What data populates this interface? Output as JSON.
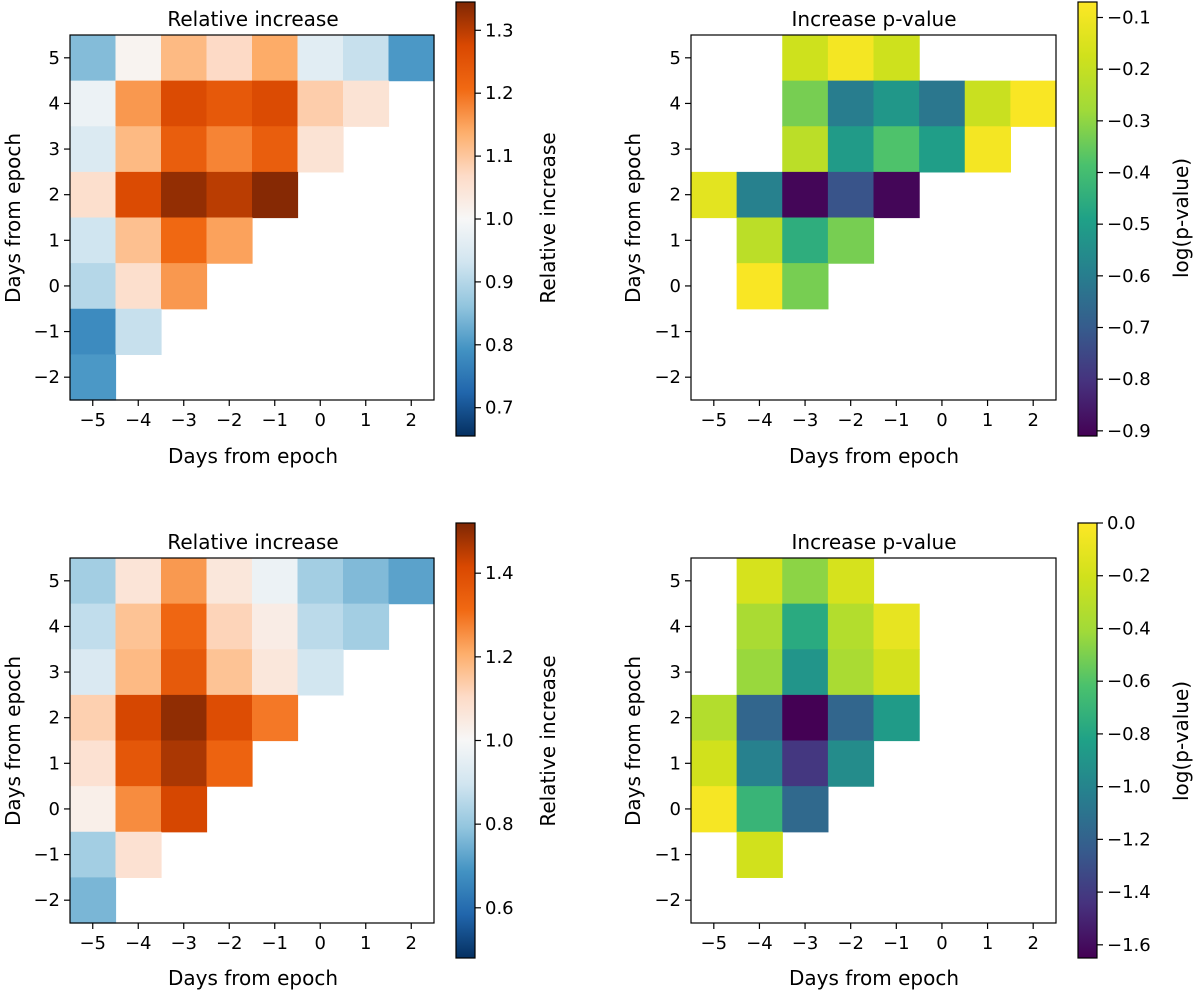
{
  "chart_data": [
    {
      "type": "heatmap",
      "title": "Relative increase",
      "xlabel": "Days from epoch",
      "ylabel": "Days from epoch",
      "x_ticks": [
        "−5",
        "−4",
        "−3",
        "−2",
        "−1",
        "0",
        "1",
        "2"
      ],
      "y_ticks": [
        "−2",
        "−1",
        "0",
        "1",
        "2",
        "3",
        "4",
        "5"
      ],
      "colormap": "RdBu_r",
      "colorbar": {
        "label": "Relative increase",
        "range": [
          0.655,
          1.345
        ],
        "ticks": [
          "0.7",
          "0.8",
          "0.9",
          "1.0",
          "1.1",
          "1.2",
          "1.3"
        ]
      },
      "rows": [
        {
          "y": "5",
          "values": [
            0.85,
            1.01,
            1.12,
            1.07,
            1.14,
            0.96,
            0.92,
            0.8
          ]
        },
        {
          "y": "4",
          "values": [
            0.98,
            1.16,
            1.27,
            1.24,
            1.27,
            1.09,
            1.05,
            null
          ]
        },
        {
          "y": "3",
          "values": [
            0.95,
            1.12,
            1.23,
            1.18,
            1.23,
            1.05,
            null,
            null
          ]
        },
        {
          "y": "2",
          "values": [
            1.06,
            1.27,
            1.33,
            1.3,
            1.34,
            null,
            null,
            null
          ]
        },
        {
          "y": "1",
          "values": [
            0.93,
            1.11,
            1.21,
            1.15,
            null,
            null,
            null,
            null
          ]
        },
        {
          "y": "0",
          "values": [
            0.9,
            1.06,
            1.16,
            null,
            null,
            null,
            null,
            null
          ]
        },
        {
          "y": "−1",
          "values": [
            0.78,
            0.92,
            null,
            null,
            null,
            null,
            null,
            null
          ]
        },
        {
          "y": "−2",
          "values": [
            0.8,
            null,
            null,
            null,
            null,
            null,
            null,
            null
          ]
        }
      ]
    },
    {
      "type": "heatmap",
      "title": "Increase p-value",
      "xlabel": "Days from epoch",
      "ylabel": "Days from epoch",
      "x_ticks": [
        "−5",
        "−4",
        "−3",
        "−2",
        "−1",
        "0",
        "1",
        "2"
      ],
      "y_ticks": [
        "−2",
        "−1",
        "0",
        "1",
        "2",
        "3",
        "4",
        "5"
      ],
      "colormap": "viridis",
      "colorbar": {
        "label": "log(p-value)",
        "range": [
          -0.91,
          -0.07
        ],
        "ticks": [
          "−0.9",
          "−0.8",
          "−0.7",
          "−0.6",
          "−0.5",
          "−0.4",
          "−0.3",
          "−0.2",
          "−0.1"
        ]
      },
      "rows": [
        {
          "y": "5",
          "values": [
            null,
            null,
            -0.18,
            -0.09,
            -0.18,
            null,
            null,
            null
          ]
        },
        {
          "y": "4",
          "values": [
            null,
            null,
            -0.33,
            -0.6,
            -0.52,
            -0.62,
            -0.19,
            -0.08
          ]
        },
        {
          "y": "3",
          "values": [
            null,
            null,
            -0.22,
            -0.51,
            -0.38,
            -0.5,
            -0.09,
            null
          ]
        },
        {
          "y": "2",
          "values": [
            -0.13,
            -0.59,
            -0.9,
            -0.72,
            -0.9,
            null,
            null,
            null
          ]
        },
        {
          "y": "1",
          "values": [
            null,
            -0.22,
            -0.45,
            -0.33,
            null,
            null,
            null,
            null
          ]
        },
        {
          "y": "0",
          "values": [
            null,
            -0.08,
            -0.33,
            null,
            null,
            null,
            null,
            null
          ]
        },
        {
          "y": "−1",
          "values": [
            null,
            null,
            null,
            null,
            null,
            null,
            null,
            null
          ]
        },
        {
          "y": "−2",
          "values": [
            null,
            null,
            null,
            null,
            null,
            null,
            null,
            null
          ]
        }
      ]
    },
    {
      "type": "heatmap",
      "title": "Relative increase",
      "xlabel": "Days from epoch",
      "ylabel": "Days from epoch",
      "x_ticks": [
        "−5",
        "−4",
        "−3",
        "−2",
        "−1",
        "0",
        "1",
        "2"
      ],
      "y_ticks": [
        "−2",
        "−1",
        "0",
        "1",
        "2",
        "3",
        "4",
        "5"
      ],
      "colormap": "RdBu_r",
      "colorbar": {
        "label": "Relative increase",
        "range": [
          0.48,
          1.52
        ],
        "ticks": [
          "0.6",
          "0.8",
          "1.0",
          "1.2",
          "1.4"
        ]
      },
      "rows": [
        {
          "y": "5",
          "values": [
            0.82,
            1.07,
            1.24,
            1.06,
            0.97,
            0.82,
            0.77,
            0.72
          ]
        },
        {
          "y": "4",
          "values": [
            0.87,
            1.16,
            1.32,
            1.12,
            1.04,
            0.86,
            0.82,
            null
          ]
        },
        {
          "y": "3",
          "values": [
            0.92,
            1.18,
            1.36,
            1.16,
            1.06,
            0.9,
            null,
            null
          ]
        },
        {
          "y": "2",
          "values": [
            1.13,
            1.42,
            1.5,
            1.4,
            1.29,
            null,
            null,
            null
          ]
        },
        {
          "y": "1",
          "values": [
            1.08,
            1.37,
            1.47,
            1.33,
            null,
            null,
            null,
            null
          ]
        },
        {
          "y": "0",
          "values": [
            1.03,
            1.26,
            1.42,
            null,
            null,
            null,
            null,
            null
          ]
        },
        {
          "y": "−1",
          "values": [
            0.82,
            1.08,
            null,
            null,
            null,
            null,
            null,
            null
          ]
        },
        {
          "y": "−2",
          "values": [
            0.76,
            null,
            null,
            null,
            null,
            null,
            null,
            null
          ]
        }
      ]
    },
    {
      "type": "heatmap",
      "title": "Increase p-value",
      "xlabel": "Days from epoch",
      "ylabel": "Days from epoch",
      "x_ticks": [
        "−5",
        "−4",
        "−3",
        "−2",
        "−1",
        "0",
        "1",
        "2"
      ],
      "y_ticks": [
        "−2",
        "−1",
        "0",
        "1",
        "2",
        "3",
        "4",
        "5"
      ],
      "colormap": "viridis",
      "colorbar": {
        "label": "log(p-value)",
        "range": [
          -1.65,
          0.0
        ],
        "ticks": [
          "−1.6",
          "−1.4",
          "−1.2",
          "−1.0",
          "−0.8",
          "−0.6",
          "−0.4",
          "−0.2",
          "0.0"
        ]
      },
      "rows": [
        {
          "y": "5",
          "values": [
            null,
            -0.18,
            -0.46,
            -0.18,
            null,
            null,
            null,
            null
          ]
        },
        {
          "y": "4",
          "values": [
            null,
            -0.37,
            -0.77,
            -0.33,
            -0.1,
            null,
            null,
            null
          ]
        },
        {
          "y": "3",
          "values": [
            null,
            -0.43,
            -0.9,
            -0.37,
            -0.19,
            null,
            null,
            null
          ]
        },
        {
          "y": "2",
          "values": [
            -0.33,
            -1.18,
            -1.65,
            -1.18,
            -0.86,
            null,
            null,
            null
          ]
        },
        {
          "y": "1",
          "values": [
            -0.2,
            -1.02,
            -1.42,
            -0.95,
            null,
            null,
            null,
            null
          ]
        },
        {
          "y": "0",
          "values": [
            -0.03,
            -0.7,
            -1.16,
            null,
            null,
            null,
            null,
            null
          ]
        },
        {
          "y": "−1",
          "values": [
            null,
            -0.2,
            null,
            null,
            null,
            null,
            null,
            null
          ]
        },
        {
          "y": "−2",
          "values": [
            null,
            null,
            null,
            null,
            null,
            null,
            null,
            null
          ]
        }
      ]
    }
  ]
}
